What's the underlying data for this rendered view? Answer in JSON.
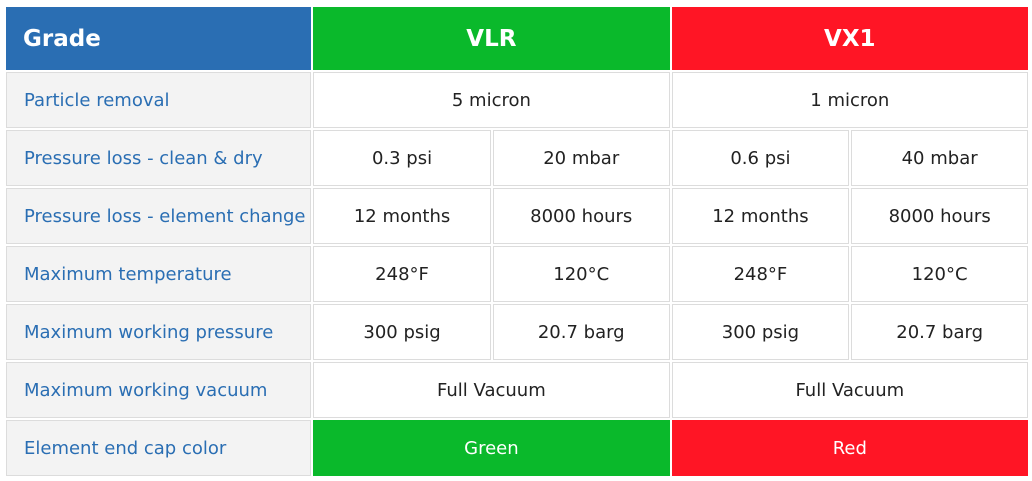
{
  "header": {
    "grade": "Grade",
    "vlr": "VLR",
    "vx1": "VX1",
    "colors": {
      "grade_bg": "#2a6eb3",
      "vlr_bg": "#0ab92b",
      "vx1_bg": "#ff1525"
    }
  },
  "rows": {
    "particle": {
      "label": "Particle removal",
      "vlr": "5 micron",
      "vx1": "1 micron"
    },
    "pressure_clean": {
      "label": "Pressure loss - clean & dry",
      "vlr_a": "0.3 psi",
      "vlr_b": "20 mbar",
      "vx1_a": "0.6 psi",
      "vx1_b": "40 mbar"
    },
    "element_change": {
      "label": "Pressure loss - element change",
      "vlr_a": "12 months",
      "vlr_b": "8000 hours",
      "vx1_a": "12 months",
      "vx1_b": "8000 hours"
    },
    "max_temp": {
      "label": "Maximum temperature",
      "vlr_a": "248°F",
      "vlr_b": "120°C",
      "vx1_a": "248°F",
      "vx1_b": "120°C"
    },
    "max_pressure": {
      "label": "Maximum working pressure",
      "vlr_a": "300 psig",
      "vlr_b": "20.7 barg",
      "vx1_a": "300 psig",
      "vx1_b": "20.7 barg"
    },
    "max_vacuum": {
      "label": "Maximum working vacuum",
      "vlr": "Full Vacuum",
      "vx1": "Full Vacuum"
    },
    "end_cap": {
      "label": "Element end cap color",
      "vlr": "Green",
      "vx1": "Red"
    }
  }
}
